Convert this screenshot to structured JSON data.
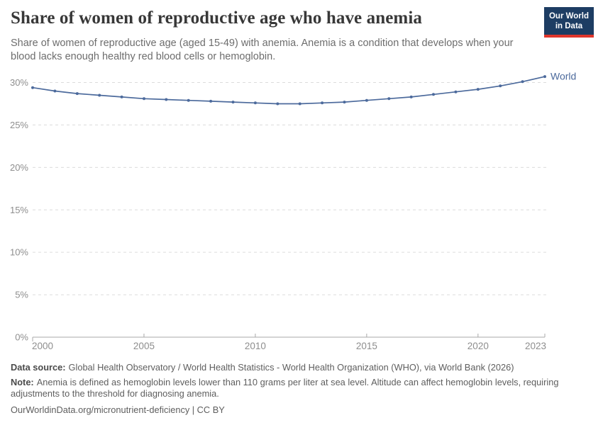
{
  "header": {
    "title": "Share of women of reproductive age who have anemia",
    "subtitle": "Share of women of reproductive age (aged 15-49) with anemia. Anemia is a condition that develops when your blood lacks enough healthy red blood cells or hemoglobin.",
    "logo": {
      "line1": "Our World",
      "line2": "in Data"
    }
  },
  "chart_data": {
    "type": "line",
    "title": "Share of women of reproductive age who have anemia",
    "xlabel": "",
    "ylabel": "",
    "x_ticks": [
      2000,
      2005,
      2010,
      2015,
      2020,
      2023
    ],
    "x_tick_labels": [
      "2000",
      "2005",
      "2010",
      "2015",
      "2020",
      "2023"
    ],
    "y_ticks": [
      0,
      5,
      10,
      15,
      20,
      25,
      30
    ],
    "y_tick_suffix": "%",
    "xlim": [
      2000,
      2023
    ],
    "ylim": [
      0,
      31.8
    ],
    "grid": "horizontal-dashed",
    "legend_position": "line-end-label",
    "series": [
      {
        "name": "World",
        "color": "#4c6a9c",
        "x": [
          2000,
          2001,
          2002,
          2003,
          2004,
          2005,
          2006,
          2007,
          2008,
          2009,
          2010,
          2011,
          2012,
          2013,
          2014,
          2015,
          2016,
          2017,
          2018,
          2019,
          2020,
          2021,
          2022,
          2023
        ],
        "values": [
          29.4,
          29.0,
          28.7,
          28.5,
          28.3,
          28.1,
          28.0,
          27.9,
          27.8,
          27.7,
          27.6,
          27.5,
          27.5,
          27.6,
          27.7,
          27.9,
          28.1,
          28.3,
          28.6,
          28.9,
          29.2,
          29.6,
          30.1,
          30.7
        ]
      }
    ]
  },
  "footer": {
    "data_source_label": "Data source:",
    "data_source": "Global Health Observatory / World Health Statistics - World Health Organization (WHO), via World Bank (2026)",
    "note_label": "Note:",
    "note": "Anemia is defined as hemoglobin levels lower than 110 grams per liter at sea level. Altitude can affect hemoglobin levels, requiring adjustments to the threshold for diagnosing anemia.",
    "link": "OurWorldinData.org/micronutrient-deficiency | CC BY"
  },
  "colors": {
    "line": "#4c6a9c",
    "grid": "#dcdcdc",
    "axis": "#a8a8a8",
    "tick_label": "#8e8e8e",
    "logo_navy": "#1d3d63",
    "logo_red": "#e0362c"
  }
}
